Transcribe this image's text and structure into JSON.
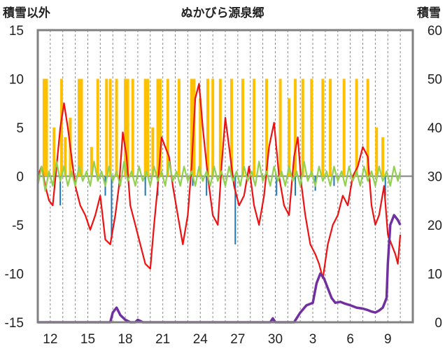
{
  "chart_data": {
    "type": "line",
    "title": "ぬかびら源泉郷",
    "ylabel_left": "積雪以外",
    "ylabel_right": "積雪",
    "ylim_left": [
      -15,
      15
    ],
    "ylim_right": [
      0,
      60
    ],
    "y_ticks_left": [
      "15",
      "10",
      "5",
      "0",
      "-5",
      "-10",
      "-15"
    ],
    "y_ticks_right": [
      "60",
      "50",
      "40",
      "30",
      "20",
      "10",
      "0"
    ],
    "x_range": [
      0,
      30
    ],
    "x_tick_labels": [
      {
        "x": 1,
        "label": "12"
      },
      {
        "x": 4,
        "label": "15"
      },
      {
        "x": 7,
        "label": "18"
      },
      {
        "x": 10,
        "label": "21"
      },
      {
        "x": 13,
        "label": "24"
      },
      {
        "x": 16,
        "label": "27"
      },
      {
        "x": 19,
        "label": "30"
      },
      {
        "x": 22,
        "label": "3"
      },
      {
        "x": 25,
        "label": "6"
      },
      {
        "x": 28,
        "label": "9"
      }
    ],
    "grid": "vertical dashed at each day, solid horizontal at 0",
    "colors": {
      "temperature": "#ee1111",
      "precip_bars": "#ffc000",
      "wind": "#92d050",
      "negative_bars": "#1f77b4",
      "snow_depth": "#7030a0",
      "frame": "#808080"
    },
    "series": [
      {
        "axis": "left",
        "kind": "line",
        "color": "#ee1111",
        "points": [
          [
            0,
            0
          ],
          [
            0.3,
            1
          ],
          [
            0.6,
            -1
          ],
          [
            0.9,
            -2.5
          ],
          [
            1.2,
            -3
          ],
          [
            1.5,
            1
          ],
          [
            1.8,
            5
          ],
          [
            2.1,
            7.5
          ],
          [
            2.4,
            5
          ],
          [
            2.7,
            2
          ],
          [
            3,
            -1
          ],
          [
            3.4,
            -3
          ],
          [
            3.8,
            -4
          ],
          [
            4.2,
            -5.5
          ],
          [
            4.6,
            -4
          ],
          [
            5,
            -2
          ],
          [
            5.4,
            -6.5
          ],
          [
            5.8,
            -7
          ],
          [
            6.2,
            -4
          ],
          [
            6.5,
            -1
          ],
          [
            6.8,
            4.5
          ],
          [
            7.1,
            2
          ],
          [
            7.4,
            -3
          ],
          [
            7.8,
            -5
          ],
          [
            8.2,
            -7
          ],
          [
            8.6,
            -9
          ],
          [
            9,
            -9.5
          ],
          [
            9.3,
            -5
          ],
          [
            9.6,
            -1
          ],
          [
            9.9,
            4
          ],
          [
            10.2,
            3
          ],
          [
            10.5,
            2
          ],
          [
            10.8,
            -1
          ],
          [
            11.2,
            -4
          ],
          [
            11.6,
            -7
          ],
          [
            12,
            -4
          ],
          [
            12.3,
            1
          ],
          [
            12.6,
            8
          ],
          [
            12.9,
            9.5
          ],
          [
            13.2,
            5
          ],
          [
            13.6,
            0
          ],
          [
            14,
            -4
          ],
          [
            14.4,
            -5
          ],
          [
            14.7,
            1
          ],
          [
            15,
            6
          ],
          [
            15.3,
            3
          ],
          [
            15.7,
            -1
          ],
          [
            16.1,
            -3
          ],
          [
            16.5,
            -2
          ],
          [
            16.9,
            1
          ],
          [
            17.3,
            -3
          ],
          [
            17.7,
            -5
          ],
          [
            18.1,
            -2
          ],
          [
            18.5,
            3
          ],
          [
            18.9,
            5.5
          ],
          [
            19.3,
            0
          ],
          [
            19.7,
            -3
          ],
          [
            20.1,
            -4
          ],
          [
            20.5,
            2
          ],
          [
            20.8,
            4
          ],
          [
            21.1,
            -1
          ],
          [
            21.4,
            -4
          ],
          [
            21.8,
            -7
          ],
          [
            22.2,
            -8
          ],
          [
            22.5,
            -9
          ],
          [
            22.8,
            -10.5
          ],
          [
            23.2,
            -7
          ],
          [
            23.6,
            -5
          ],
          [
            24,
            -4
          ],
          [
            24.4,
            -2
          ],
          [
            24.8,
            -3
          ],
          [
            25.2,
            0
          ],
          [
            25.6,
            1
          ],
          [
            26,
            3
          ],
          [
            26.4,
            2
          ],
          [
            26.7,
            -3
          ],
          [
            27,
            -5
          ],
          [
            27.3,
            -4
          ],
          [
            27.7,
            -1
          ],
          [
            28,
            -6
          ],
          [
            28.3,
            -7
          ],
          [
            28.6,
            -8
          ],
          [
            28.8,
            -9
          ],
          [
            29,
            -6
          ]
        ]
      },
      {
        "axis": "left",
        "kind": "line",
        "color": "#92d050",
        "points": [
          [
            0,
            -1
          ],
          [
            0.3,
            1
          ],
          [
            0.6,
            -1.5
          ],
          [
            0.9,
            0.5
          ],
          [
            1.2,
            -1
          ],
          [
            1.5,
            1.5
          ],
          [
            1.8,
            -0.5
          ],
          [
            2.1,
            1
          ],
          [
            2.4,
            -1
          ],
          [
            2.7,
            0.5
          ],
          [
            3,
            -1
          ],
          [
            3.3,
            1
          ],
          [
            3.6,
            -0.5
          ],
          [
            3.9,
            0.5
          ],
          [
            4.2,
            -1
          ],
          [
            4.5,
            1.5
          ],
          [
            4.8,
            -0.5
          ],
          [
            5.1,
            0.5
          ],
          [
            5.4,
            -1
          ],
          [
            5.7,
            1
          ],
          [
            6,
            -0.5
          ],
          [
            6.3,
            0.5
          ],
          [
            6.6,
            -1
          ],
          [
            6.9,
            1.5
          ],
          [
            7.2,
            -0.5
          ],
          [
            7.5,
            0.5
          ],
          [
            7.8,
            -1
          ],
          [
            8.1,
            1
          ],
          [
            8.4,
            -0.5
          ],
          [
            8.7,
            0.5
          ],
          [
            9,
            -1
          ],
          [
            9.3,
            1
          ],
          [
            9.6,
            -0.5
          ],
          [
            9.9,
            0.5
          ],
          [
            10.2,
            -1
          ],
          [
            10.5,
            1.5
          ],
          [
            10.8,
            -0.5
          ],
          [
            11.1,
            0.5
          ],
          [
            11.4,
            -1
          ],
          [
            11.7,
            1
          ],
          [
            12,
            -0.5
          ],
          [
            12.3,
            0.5
          ],
          [
            12.6,
            -1
          ],
          [
            12.9,
            1
          ],
          [
            13.2,
            -0.5
          ],
          [
            13.5,
            0.5
          ],
          [
            13.8,
            -1
          ],
          [
            14.1,
            1
          ],
          [
            14.4,
            -0.5
          ],
          [
            14.7,
            0.5
          ],
          [
            15,
            -1
          ],
          [
            15.3,
            1
          ],
          [
            15.6,
            -0.5
          ],
          [
            15.9,
            0.5
          ],
          [
            16.2,
            -1
          ],
          [
            16.5,
            1
          ],
          [
            16.8,
            -0.5
          ],
          [
            17.1,
            0.5
          ],
          [
            17.4,
            -1
          ],
          [
            17.7,
            1.5
          ],
          [
            18,
            -0.5
          ],
          [
            18.3,
            0.5
          ],
          [
            18.6,
            -1
          ],
          [
            18.9,
            1
          ],
          [
            19.2,
            -0.5
          ],
          [
            19.5,
            0.5
          ],
          [
            19.8,
            -1
          ],
          [
            20.1,
            1
          ],
          [
            20.4,
            -0.5
          ],
          [
            20.7,
            0.5
          ],
          [
            21,
            -1
          ],
          [
            21.3,
            1.5
          ],
          [
            21.6,
            -0.5
          ],
          [
            21.9,
            0.5
          ],
          [
            22.2,
            -1
          ],
          [
            22.5,
            1
          ],
          [
            22.8,
            -0.5
          ],
          [
            23.1,
            0.5
          ],
          [
            23.4,
            -1
          ],
          [
            23.7,
            1
          ],
          [
            24,
            -0.5
          ],
          [
            24.3,
            0.5
          ],
          [
            24.6,
            -1
          ],
          [
            24.9,
            1
          ],
          [
            25.2,
            -0.5
          ],
          [
            25.5,
            0.5
          ],
          [
            25.8,
            -1
          ],
          [
            26.1,
            1
          ],
          [
            26.4,
            -0.5
          ],
          [
            26.7,
            0.5
          ],
          [
            27,
            -1
          ],
          [
            27.3,
            1
          ],
          [
            27.6,
            -0.5
          ],
          [
            27.9,
            0.5
          ],
          [
            28.2,
            -1
          ],
          [
            28.5,
            1
          ],
          [
            28.8,
            -0.5
          ],
          [
            29,
            0.5
          ]
        ]
      },
      {
        "axis": "right",
        "kind": "line",
        "color": "#7030a0",
        "points": [
          [
            0,
            0
          ],
          [
            5.8,
            0
          ],
          [
            6,
            2
          ],
          [
            6.3,
            3
          ],
          [
            6.6,
            1.5
          ],
          [
            7,
            0.5
          ],
          [
            7.4,
            0
          ],
          [
            7.8,
            0
          ],
          [
            8,
            0.5
          ],
          [
            8.4,
            0
          ],
          [
            18.6,
            0
          ],
          [
            18.8,
            0.8
          ],
          [
            19,
            0
          ],
          [
            20.5,
            0
          ],
          [
            21,
            2
          ],
          [
            21.5,
            3.5
          ],
          [
            22,
            4
          ],
          [
            22.3,
            8
          ],
          [
            22.6,
            10
          ],
          [
            22.9,
            9
          ],
          [
            23.2,
            7
          ],
          [
            23.5,
            5
          ],
          [
            23.8,
            4
          ],
          [
            24.2,
            4.2
          ],
          [
            24.6,
            3.8
          ],
          [
            25,
            3.5
          ],
          [
            25.5,
            3
          ],
          [
            26,
            2.8
          ],
          [
            26.4,
            2.5
          ],
          [
            26.7,
            2.2
          ],
          [
            27,
            2
          ],
          [
            27.3,
            2.4
          ],
          [
            27.6,
            3
          ],
          [
            27.9,
            5
          ],
          [
            28,
            12
          ],
          [
            28.2,
            20
          ],
          [
            28.5,
            22
          ],
          [
            28.8,
            21
          ],
          [
            29,
            20
          ]
        ]
      }
    ],
    "bars_left": {
      "positive_color": "#ffc000",
      "negative_color": "#1f77b4",
      "positive": [
        [
          0.5,
          10
        ],
        [
          0.7,
          10
        ],
        [
          1.3,
          5
        ],
        [
          1.9,
          10
        ],
        [
          2.2,
          4
        ],
        [
          2.6,
          6
        ],
        [
          3.3,
          10
        ],
        [
          3.5,
          10
        ],
        [
          4.3,
          3
        ],
        [
          4.8,
          10
        ],
        [
          5.5,
          10
        ],
        [
          5.8,
          10
        ],
        [
          6.3,
          10
        ],
        [
          7,
          10
        ],
        [
          7.2,
          10
        ],
        [
          7.6,
          10
        ],
        [
          8.6,
          10
        ],
        [
          8.8,
          10
        ],
        [
          9.2,
          5
        ],
        [
          9.6,
          10
        ],
        [
          9.8,
          10
        ],
        [
          10.4,
          10
        ],
        [
          11.3,
          10
        ],
        [
          12.3,
          10
        ],
        [
          12.5,
          10
        ],
        [
          13,
          8
        ],
        [
          13.6,
          10
        ],
        [
          14,
          10
        ],
        [
          14.6,
          10
        ],
        [
          15.5,
          10
        ],
        [
          16.4,
          10
        ],
        [
          17.3,
          10
        ],
        [
          18.3,
          10
        ],
        [
          19.4,
          10
        ],
        [
          20.1,
          8
        ],
        [
          20.6,
          10
        ],
        [
          21.2,
          10
        ],
        [
          21.9,
          10
        ],
        [
          22.8,
          10
        ],
        [
          23.4,
          10
        ],
        [
          24.5,
          10
        ],
        [
          25.5,
          10
        ],
        [
          26.4,
          10
        ],
        [
          27.1,
          5
        ],
        [
          27.6,
          4
        ]
      ],
      "negative": [
        [
          1.8,
          -3
        ],
        [
          5.4,
          -2
        ],
        [
          5.9,
          -6.5
        ],
        [
          8.6,
          -2
        ],
        [
          9.6,
          -2
        ],
        [
          12.4,
          -1
        ],
        [
          13.5,
          -2
        ],
        [
          15.8,
          -7
        ],
        [
          19.1,
          -2
        ],
        [
          20.6,
          -2
        ],
        [
          22.2,
          -1.5
        ],
        [
          23.7,
          -1
        ],
        [
          27.8,
          -2
        ]
      ]
    }
  }
}
